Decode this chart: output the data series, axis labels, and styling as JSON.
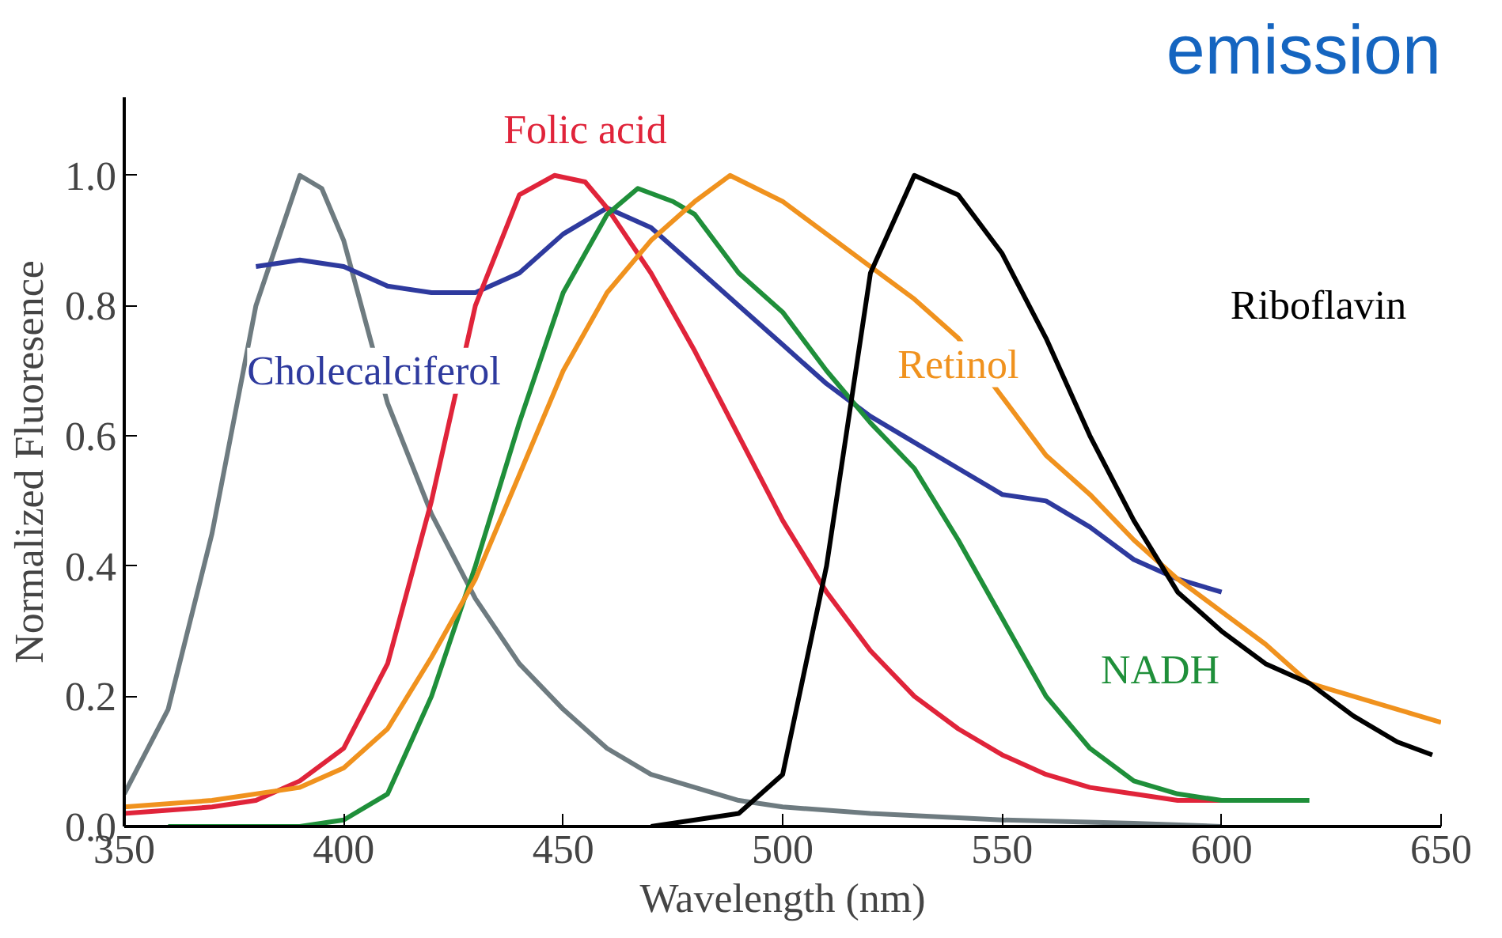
{
  "chart_data": {
    "type": "line",
    "title": "emission",
    "xlabel": "Wavelength (nm)",
    "ylabel": "Normalized Fluoresence",
    "xlim": [
      350,
      650
    ],
    "xticks": [
      350,
      400,
      450,
      500,
      550,
      600,
      650
    ],
    "ylim": [
      0,
      1.12
    ],
    "yticks": [
      {
        "value": 0,
        "label": "0.0"
      },
      {
        "value": 0.2,
        "label": "0.2"
      },
      {
        "value": 0.4,
        "label": "0.4"
      },
      {
        "value": 0.6,
        "label": "0.6"
      },
      {
        "value": 0.8,
        "label": "0.8"
      },
      {
        "value": 1,
        "label": "1.0"
      }
    ],
    "grid": false,
    "series": [
      {
        "color": "#6e7b80",
        "x": [
          350,
          360,
          370,
          380,
          390,
          395,
          400,
          410,
          420,
          430,
          440,
          450,
          460,
          470,
          480,
          490,
          500,
          520,
          550,
          580,
          600
        ],
        "values": [
          0.05,
          0.18,
          0.45,
          0.8,
          1.0,
          0.98,
          0.9,
          0.65,
          0.48,
          0.35,
          0.25,
          0.18,
          0.12,
          0.08,
          0.06,
          0.04,
          0.03,
          0.02,
          0.01,
          0.005,
          0.0
        ]
      },
      {
        "name": "Cholecalciferol",
        "color": "#2e3a9e",
        "x": [
          380,
          390,
          400,
          410,
          420,
          430,
          440,
          450,
          460,
          470,
          480,
          490,
          500,
          510,
          520,
          530,
          540,
          550,
          560,
          570,
          580,
          590,
          600
        ],
        "values": [
          0.86,
          0.87,
          0.86,
          0.83,
          0.82,
          0.82,
          0.85,
          0.91,
          0.95,
          0.92,
          0.86,
          0.8,
          0.74,
          0.68,
          0.63,
          0.59,
          0.55,
          0.51,
          0.5,
          0.46,
          0.41,
          0.38,
          0.36
        ]
      },
      {
        "name": "Folic acid",
        "color": "#e0243a",
        "x": [
          350,
          370,
          380,
          390,
          400,
          410,
          420,
          430,
          440,
          448,
          455,
          460,
          470,
          480,
          490,
          500,
          510,
          520,
          530,
          540,
          550,
          560,
          570,
          580,
          590,
          600
        ],
        "values": [
          0.02,
          0.03,
          0.04,
          0.07,
          0.12,
          0.25,
          0.5,
          0.8,
          0.97,
          1.0,
          0.99,
          0.95,
          0.85,
          0.73,
          0.6,
          0.47,
          0.36,
          0.27,
          0.2,
          0.15,
          0.11,
          0.08,
          0.06,
          0.05,
          0.04,
          0.04
        ]
      },
      {
        "name": "NADH",
        "color": "#1f8f3a",
        "x": [
          360,
          390,
          400,
          410,
          420,
          430,
          440,
          450,
          460,
          467,
          475,
          480,
          490,
          500,
          510,
          520,
          530,
          540,
          550,
          560,
          570,
          580,
          590,
          600,
          620
        ],
        "values": [
          0.0,
          0.0,
          0.01,
          0.05,
          0.2,
          0.4,
          0.62,
          0.82,
          0.94,
          0.98,
          0.96,
          0.94,
          0.85,
          0.79,
          0.7,
          0.62,
          0.55,
          0.44,
          0.32,
          0.2,
          0.12,
          0.07,
          0.05,
          0.04,
          0.04
        ]
      },
      {
        "name": "Retinol",
        "color": "#f0921e",
        "x": [
          350,
          370,
          390,
          400,
          410,
          420,
          430,
          440,
          450,
          460,
          470,
          480,
          488,
          500,
          510,
          520,
          530,
          540,
          550,
          560,
          570,
          580,
          590,
          600,
          610,
          620,
          630,
          640,
          650
        ],
        "values": [
          0.03,
          0.04,
          0.06,
          0.09,
          0.15,
          0.26,
          0.38,
          0.54,
          0.7,
          0.82,
          0.9,
          0.96,
          1.0,
          0.96,
          0.91,
          0.86,
          0.81,
          0.75,
          0.66,
          0.57,
          0.51,
          0.44,
          0.38,
          0.33,
          0.28,
          0.22,
          0.2,
          0.18,
          0.16
        ]
      },
      {
        "name": "Riboflavin",
        "color": "#000000",
        "x": [
          470,
          490,
          500,
          510,
          520,
          530,
          540,
          550,
          560,
          570,
          580,
          590,
          600,
          610,
          620,
          630,
          640,
          648
        ],
        "values": [
          0.0,
          0.02,
          0.08,
          0.4,
          0.85,
          1.0,
          0.97,
          0.88,
          0.75,
          0.6,
          0.47,
          0.36,
          0.3,
          0.25,
          0.22,
          0.17,
          0.13,
          0.11
        ]
      }
    ]
  }
}
